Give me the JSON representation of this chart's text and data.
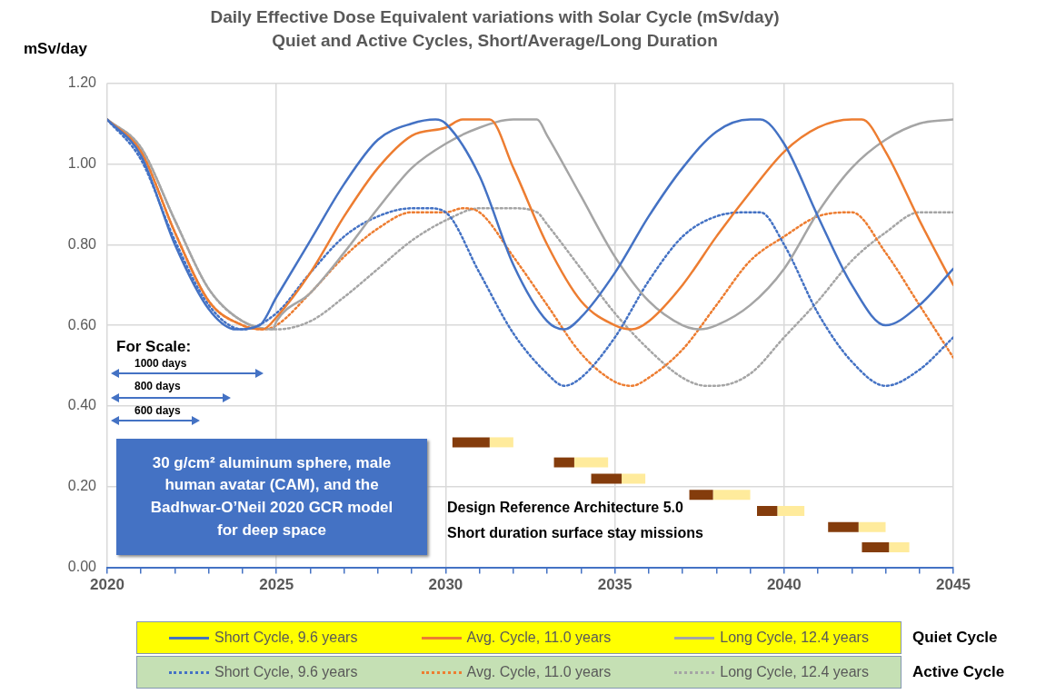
{
  "chart_data": {
    "type": "line",
    "title": "Daily Effective Dose Equivalent variations with Solar Cycle (mSv/day)",
    "subtitle": "Quiet and Active Cycles, Short/Average/Long Duration",
    "ylabel": "mSv/day",
    "xlim": [
      2020,
      2045
    ],
    "xticks": [
      2020,
      {
        "value": 2021,
        "label": null
      },
      {
        "value": 2022,
        "label": null
      },
      {
        "value": 2023,
        "label": null
      },
      {
        "value": 2024,
        "label": null
      },
      2025,
      {
        "value": 2026,
        "label": null
      },
      {
        "value": 2027,
        "label": null
      },
      {
        "value": 2028,
        "label": null
      },
      {
        "value": 2029,
        "label": null
      },
      2030,
      {
        "value": 2031,
        "label": null
      },
      {
        "value": 2032,
        "label": null
      },
      {
        "value": 2033,
        "label": null
      },
      {
        "value": 2034,
        "label": null
      },
      2035,
      {
        "value": 2036,
        "label": null
      },
      {
        "value": 2037,
        "label": null
      },
      {
        "value": 2038,
        "label": null
      },
      {
        "value": 2039,
        "label": null
      },
      2040,
      {
        "value": 2041,
        "label": null
      },
      {
        "value": 2042,
        "label": null
      },
      {
        "value": 2043,
        "label": null
      },
      {
        "value": 2044,
        "label": null
      },
      2045
    ],
    "ylim": [
      0,
      1.2
    ],
    "yticks": [
      {
        "value": 0,
        "label": "0.00"
      },
      {
        "value": 0.2,
        "label": "0.20"
      },
      {
        "value": 0.4,
        "label": "0.40"
      },
      {
        "value": 0.6,
        "label": "0.60"
      },
      {
        "value": 0.8,
        "label": "0.80"
      },
      {
        "value": 1,
        "label": "1.00"
      },
      {
        "value": 1.2,
        "label": "1.20"
      }
    ],
    "grid": true,
    "legend": "bottom",
    "marker": "none",
    "annotations": [
      "For Scale:",
      "1000 days",
      "800 days",
      "600 days",
      "30 g/cm² aluminum sphere, male human avatar (CAM), and the Badhwar-O’Neil 2020 GCR model for deep space",
      "Design Reference Architecture 5.0",
      "Short duration surface stay missions",
      "Quiet Cycle",
      "Active Cycle"
    ],
    "series": [
      {
        "name": "Short Cycle, 9.6 years",
        "color": "#4472c4",
        "line_style": "solid",
        "x": [
          2020,
          2021,
          2022,
          2023,
          2023.8,
          2024.5,
          2025,
          2026,
          2027,
          2028,
          2029,
          2029.7,
          2030,
          2031,
          2032,
          2033,
          2033.5,
          2034,
          2035,
          2036,
          2037,
          2038,
          2039,
          2039.3,
          2040,
          2041,
          2042,
          2043,
          2044,
          2045
        ],
        "values": [
          1.11,
          1.02,
          0.8,
          0.64,
          0.59,
          0.6,
          0.67,
          0.81,
          0.95,
          1.06,
          1.1,
          1.11,
          1.1,
          0.97,
          0.75,
          0.61,
          0.59,
          0.62,
          0.73,
          0.87,
          0.99,
          1.08,
          1.11,
          1.11,
          1.05,
          0.87,
          0.7,
          0.6,
          0.65,
          0.74
        ]
      },
      {
        "name": "Avg. Cycle, 11.0 years",
        "color": "#ed7d31",
        "line_style": "solid",
        "x": [
          2020,
          2021,
          2022,
          2023,
          2024,
          2024.6,
          2025,
          2026,
          2027,
          2028,
          2029,
          2030,
          2030.5,
          2031,
          2031.3,
          2032,
          2033,
          2034,
          2035,
          2035.5,
          2036,
          2037,
          2038,
          2039,
          2040,
          2041,
          2042,
          2042.3,
          2043,
          2044,
          2045
        ],
        "values": [
          1.11,
          1.03,
          0.83,
          0.66,
          0.6,
          0.59,
          0.62,
          0.73,
          0.87,
          0.99,
          1.07,
          1.09,
          1.11,
          1.11,
          1.11,
          0.99,
          0.8,
          0.66,
          0.6,
          0.59,
          0.61,
          0.7,
          0.82,
          0.93,
          1.03,
          1.09,
          1.11,
          1.11,
          1.03,
          0.86,
          0.7
        ]
      },
      {
        "name": "Long Cycle, 12.4 years",
        "color": "#a5a5a5",
        "line_style": "solid",
        "x": [
          2020,
          2021,
          2022,
          2023,
          2024,
          2024.9,
          2025,
          2026,
          2027,
          2028,
          2029,
          2030,
          2031,
          2032,
          2032.7,
          2033,
          2034,
          2035,
          2036,
          2037,
          2037.5,
          2038,
          2039,
          2040,
          2041,
          2042,
          2043,
          2044,
          2045
        ],
        "values": [
          1.11,
          1.04,
          0.86,
          0.69,
          0.61,
          0.59,
          0.61,
          0.68,
          0.78,
          0.89,
          0.99,
          1.05,
          1.09,
          1.11,
          1.11,
          1.07,
          0.92,
          0.77,
          0.66,
          0.6,
          0.59,
          0.6,
          0.65,
          0.74,
          0.88,
          0.99,
          1.06,
          1.1,
          1.11
        ]
      },
      {
        "name": "Short Cycle, 9.6 years",
        "color": "#4472c4",
        "line_style": "dotted",
        "x": [
          2020,
          2021,
          2022,
          2023,
          2024,
          2025,
          2026,
          2027,
          2028,
          2029,
          2029.5,
          2030,
          2031,
          2032,
          2033,
          2033.5,
          2034,
          2035,
          2036,
          2037,
          2038,
          2039,
          2039.3,
          2040,
          2041,
          2042,
          2043,
          2044,
          2045
        ],
        "values": [
          1.11,
          1.01,
          0.81,
          0.65,
          0.59,
          0.63,
          0.73,
          0.82,
          0.87,
          0.89,
          0.89,
          0.88,
          0.73,
          0.58,
          0.48,
          0.45,
          0.47,
          0.57,
          0.71,
          0.82,
          0.87,
          0.88,
          0.88,
          0.8,
          0.63,
          0.51,
          0.45,
          0.49,
          0.57
        ]
      },
      {
        "name": "Avg. Cycle, 11.0 years",
        "color": "#ed7d31",
        "line_style": "dotted",
        "x": [
          2020,
          2021,
          2022,
          2023,
          2024,
          2024.6,
          2025,
          2026,
          2027,
          2028,
          2029,
          2030,
          2030.5,
          2031,
          2032,
          2033,
          2034,
          2035,
          2035.5,
          2036,
          2037,
          2038,
          2039,
          2040,
          2041,
          2042,
          2043,
          2044,
          2045
        ],
        "values": [
          1.11,
          1.03,
          0.83,
          0.66,
          0.6,
          0.59,
          0.6,
          0.68,
          0.77,
          0.84,
          0.88,
          0.88,
          0.89,
          0.88,
          0.77,
          0.65,
          0.53,
          0.46,
          0.45,
          0.47,
          0.54,
          0.65,
          0.76,
          0.82,
          0.87,
          0.88,
          0.78,
          0.65,
          0.52
        ]
      },
      {
        "name": "Long Cycle, 12.4 years",
        "color": "#a5a5a5",
        "line_style": "dotted",
        "x": [
          2020,
          2021,
          2022,
          2023,
          2024,
          2025,
          2026,
          2027,
          2028,
          2029,
          2030,
          2031,
          2032,
          2032.7,
          2033,
          2034,
          2035,
          2036,
          2037,
          2037.7,
          2038,
          2039,
          2040,
          2041,
          2042,
          2043,
          2044,
          2045
        ],
        "values": [
          1.11,
          1.04,
          0.86,
          0.69,
          0.61,
          0.59,
          0.61,
          0.67,
          0.74,
          0.81,
          0.86,
          0.89,
          0.89,
          0.88,
          0.85,
          0.74,
          0.63,
          0.54,
          0.47,
          0.45,
          0.45,
          0.48,
          0.57,
          0.66,
          0.76,
          0.83,
          0.88,
          0.88
        ]
      },
      {
        "color": "#843c0c",
        "line_style": "solid",
        "x": [
          2030.2,
          2031.3
        ],
        "values": [
          0.31,
          0.31
        ]
      },
      {
        "color": "#ffeb9c",
        "line_style": "solid",
        "x": [
          2031.3,
          2032.0
        ],
        "values": [
          0.31,
          0.31
        ]
      },
      {
        "color": "#843c0c",
        "line_style": "solid",
        "x": [
          2033.2,
          2033.8
        ],
        "values": [
          0.26,
          0.26
        ]
      },
      {
        "color": "#ffeb9c",
        "line_style": "solid",
        "x": [
          2033.8,
          2034.8
        ],
        "values": [
          0.26,
          0.26
        ]
      },
      {
        "color": "#843c0c",
        "line_style": "solid",
        "x": [
          2034.3,
          2035.2
        ],
        "values": [
          0.22,
          0.22
        ]
      },
      {
        "color": "#ffeb9c",
        "line_style": "solid",
        "x": [
          2035.2,
          2035.9
        ],
        "values": [
          0.22,
          0.22
        ]
      },
      {
        "color": "#843c0c",
        "line_style": "solid",
        "x": [
          2037.2,
          2037.9
        ],
        "values": [
          0.18,
          0.18
        ]
      },
      {
        "color": "#ffeb9c",
        "line_style": "solid",
        "x": [
          2037.9,
          2039.0
        ],
        "values": [
          0.18,
          0.18
        ]
      },
      {
        "color": "#843c0c",
        "line_style": "solid",
        "x": [
          2039.2,
          2039.8
        ],
        "values": [
          0.14,
          0.14
        ]
      },
      {
        "color": "#ffeb9c",
        "line_style": "solid",
        "x": [
          2039.8,
          2040.6
        ],
        "values": [
          0.14,
          0.14
        ]
      },
      {
        "color": "#843c0c",
        "line_style": "solid",
        "x": [
          2041.3,
          2042.2
        ],
        "values": [
          0.1,
          0.1
        ]
      },
      {
        "color": "#ffeb9c",
        "line_style": "solid",
        "x": [
          2042.2,
          2043.0
        ],
        "values": [
          0.1,
          0.1
        ]
      },
      {
        "color": "#843c0c",
        "line_style": "solid",
        "x": [
          2042.3,
          2043.1
        ],
        "values": [
          0.05,
          0.05
        ]
      },
      {
        "color": "#ffeb9c",
        "line_style": "solid",
        "x": [
          2043.1,
          2043.7
        ],
        "values": [
          0.05,
          0.05
        ]
      }
    ]
  }
}
